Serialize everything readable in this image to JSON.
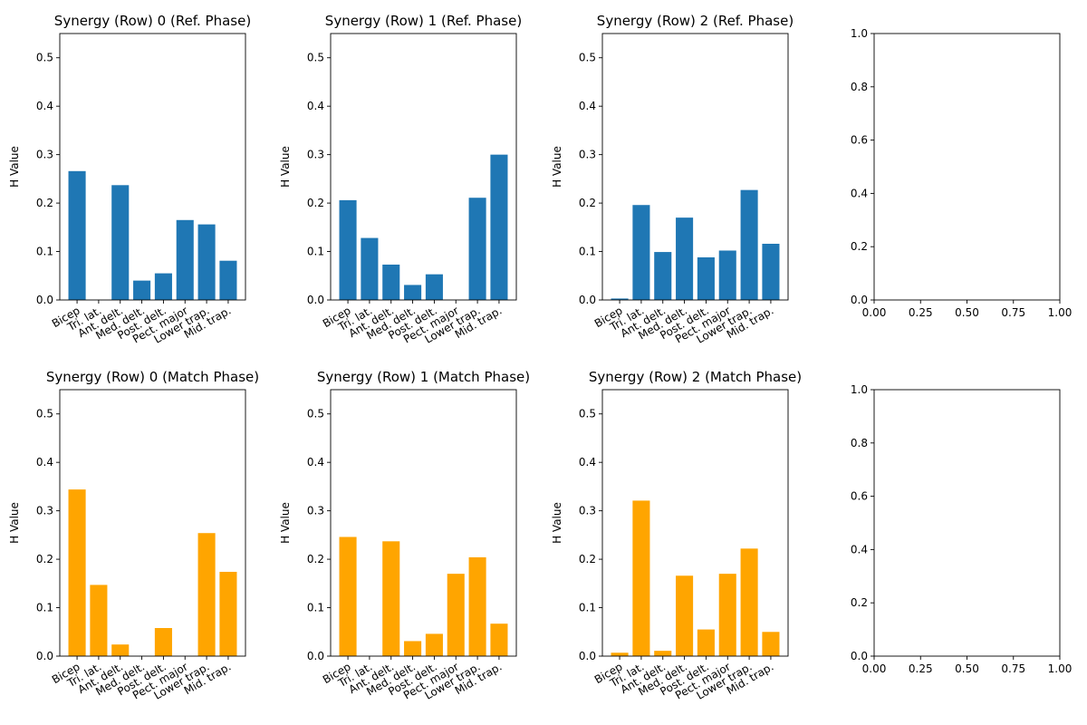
{
  "muscles": [
    "Bicep",
    "Tri. lat.",
    "Ant. delt.",
    "Med. delt.",
    "Post. delt.",
    "Pect. major",
    "Lower trap.",
    "Mid. trap."
  ],
  "colors": {
    "ref": "#1f77b4",
    "match": "#ffa500"
  },
  "chart_data": [
    {
      "type": "bar",
      "title": "Synergy (Row) 0 (Ref. Phase)",
      "ylabel": "H Value",
      "ylim": [
        0,
        0.55
      ],
      "yticks": [
        "0.0",
        "0.1",
        "0.2",
        "0.3",
        "0.4",
        "0.5"
      ],
      "color_key": "ref",
      "categories": [
        "Bicep",
        "Tri. lat.",
        "Ant. delt.",
        "Med. delt.",
        "Post. delt.",
        "Pect. major",
        "Lower trap.",
        "Mid. trap."
      ],
      "values": [
        0.266,
        0.0,
        0.237,
        0.04,
        0.055,
        0.165,
        0.156,
        0.081
      ]
    },
    {
      "type": "bar",
      "title": "Synergy (Row) 1 (Ref. Phase)",
      "ylabel": "H Value",
      "ylim": [
        0,
        0.55
      ],
      "yticks": [
        "0.0",
        "0.1",
        "0.2",
        "0.3",
        "0.4",
        "0.5"
      ],
      "color_key": "ref",
      "categories": [
        "Bicep",
        "Tri. lat.",
        "Ant. delt.",
        "Med. delt.",
        "Post. delt.",
        "Pect. major",
        "Lower trap.",
        "Mid. trap."
      ],
      "values": [
        0.206,
        0.128,
        0.073,
        0.031,
        0.053,
        0.0,
        0.211,
        0.3
      ]
    },
    {
      "type": "bar",
      "title": "Synergy (Row) 2 (Ref. Phase)",
      "ylabel": "H Value",
      "ylim": [
        0,
        0.55
      ],
      "yticks": [
        "0.0",
        "0.1",
        "0.2",
        "0.3",
        "0.4",
        "0.5"
      ],
      "color_key": "ref",
      "categories": [
        "Bicep",
        "Tri. lat.",
        "Ant. delt.",
        "Med. delt.",
        "Post. delt.",
        "Pect. major",
        "Lower trap.",
        "Mid. trap."
      ],
      "values": [
        0.003,
        0.196,
        0.099,
        0.17,
        0.088,
        0.102,
        0.227,
        0.116
      ]
    },
    {
      "type": "empty",
      "xlim": [
        0,
        1
      ],
      "ylim": [
        0,
        1
      ],
      "xticks": [
        "0.00",
        "0.25",
        "0.50",
        "0.75",
        "1.00"
      ],
      "yticks": [
        "0.0",
        "0.2",
        "0.4",
        "0.6",
        "0.8",
        "1.0"
      ]
    },
    {
      "type": "bar",
      "title": "Synergy (Row) 0 (Match Phase)",
      "ylabel": "H Value",
      "ylim": [
        0,
        0.55
      ],
      "yticks": [
        "0.0",
        "0.1",
        "0.2",
        "0.3",
        "0.4",
        "0.5"
      ],
      "color_key": "match",
      "categories": [
        "Bicep",
        "Tri. lat.",
        "Ant. delt.",
        "Med. delt.",
        "Post. delt.",
        "Pect. major",
        "Lower trap.",
        "Mid. trap."
      ],
      "values": [
        0.344,
        0.147,
        0.024,
        0.0,
        0.058,
        0.0,
        0.254,
        0.174
      ]
    },
    {
      "type": "bar",
      "title": "Synergy (Row) 1 (Match Phase)",
      "ylabel": "H Value",
      "ylim": [
        0,
        0.55
      ],
      "yticks": [
        "0.0",
        "0.1",
        "0.2",
        "0.3",
        "0.4",
        "0.5"
      ],
      "color_key": "match",
      "categories": [
        "Bicep",
        "Tri. lat.",
        "Ant. delt.",
        "Med. delt.",
        "Post. delt.",
        "Pect. major",
        "Lower trap.",
        "Mid. trap."
      ],
      "values": [
        0.246,
        0.0,
        0.237,
        0.031,
        0.046,
        0.17,
        0.204,
        0.067
      ]
    },
    {
      "type": "bar",
      "title": "Synergy (Row) 2 (Match Phase)",
      "ylabel": "H Value",
      "ylim": [
        0,
        0.55
      ],
      "yticks": [
        "0.0",
        "0.1",
        "0.2",
        "0.3",
        "0.4",
        "0.5"
      ],
      "color_key": "match",
      "categories": [
        "Bicep",
        "Tri. lat.",
        "Ant. delt.",
        "Med. delt.",
        "Post. delt.",
        "Pect. major",
        "Lower trap.",
        "Mid. trap."
      ],
      "values": [
        0.007,
        0.321,
        0.011,
        0.166,
        0.055,
        0.17,
        0.222,
        0.05
      ]
    },
    {
      "type": "empty",
      "xlim": [
        0,
        1
      ],
      "ylim": [
        0,
        1
      ],
      "xticks": [
        "0.00",
        "0.25",
        "0.50",
        "0.75",
        "1.00"
      ],
      "yticks": [
        "0.0",
        "0.2",
        "0.4",
        "0.6",
        "0.8",
        "1.0"
      ]
    }
  ]
}
